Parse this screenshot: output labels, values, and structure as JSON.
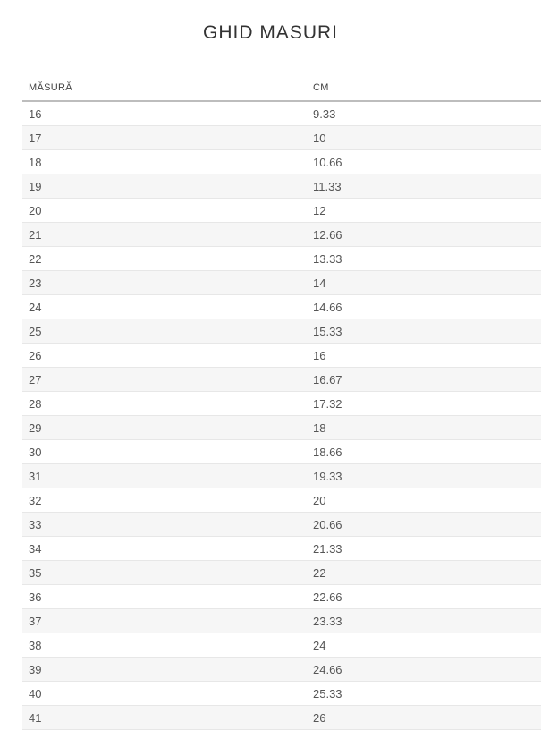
{
  "page": {
    "title": "GHID MASURI"
  },
  "table": {
    "columns": [
      {
        "label": "MĂSURĂ"
      },
      {
        "label": "CM"
      }
    ],
    "rows": [
      {
        "size": "16",
        "cm": "9.33"
      },
      {
        "size": "17",
        "cm": "10"
      },
      {
        "size": "18",
        "cm": "10.66"
      },
      {
        "size": "19",
        "cm": "11.33"
      },
      {
        "size": "20",
        "cm": "12"
      },
      {
        "size": "21",
        "cm": "12.66"
      },
      {
        "size": "22",
        "cm": "13.33"
      },
      {
        "size": "23",
        "cm": "14"
      },
      {
        "size": "24",
        "cm": "14.66"
      },
      {
        "size": "25",
        "cm": "15.33"
      },
      {
        "size": "26",
        "cm": "16"
      },
      {
        "size": "27",
        "cm": "16.67"
      },
      {
        "size": "28",
        "cm": "17.32"
      },
      {
        "size": "29",
        "cm": "18"
      },
      {
        "size": "30",
        "cm": "18.66"
      },
      {
        "size": "31",
        "cm": "19.33"
      },
      {
        "size": "32",
        "cm": "20"
      },
      {
        "size": "33",
        "cm": "20.66"
      },
      {
        "size": "34",
        "cm": "21.33"
      },
      {
        "size": "35",
        "cm": "22"
      },
      {
        "size": "36",
        "cm": "22.66"
      },
      {
        "size": "37",
        "cm": "23.33"
      },
      {
        "size": "38",
        "cm": "24"
      },
      {
        "size": "39",
        "cm": "24.66"
      },
      {
        "size": "40",
        "cm": "25.33"
      },
      {
        "size": "41",
        "cm": "26"
      }
    ]
  },
  "colors": {
    "stripe_background": "#f6f6f6",
    "row_border": "#e7e7e7",
    "header_border": "#bdbdbd",
    "cell_text": "#555555",
    "header_text": "#3f3f3f",
    "title_text": "#333333"
  }
}
